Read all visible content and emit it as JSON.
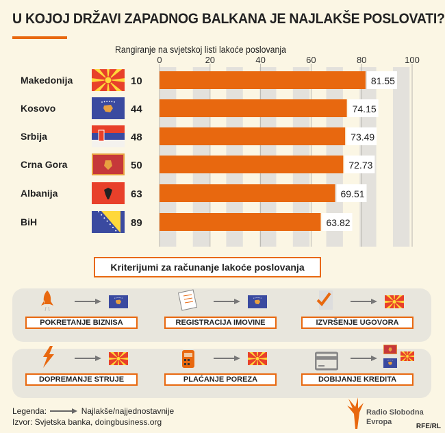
{
  "title": "U KOJOJ DRŽAVI ZAPADNOG BALKANA JE NAJLAKŠE POSLOVATI?",
  "colors": {
    "bar": "#e8680f",
    "background": "#fbf6e4",
    "band": "#e3e1dc"
  },
  "chart_data": {
    "type": "bar",
    "orientation": "horizontal",
    "title": "Rangiranje na svjetskoj listi lakoće poslovanja",
    "categories": [
      "Makedonija",
      "Kosovo",
      "Srbija",
      "Crna Gora",
      "Albanija",
      "BiH"
    ],
    "ranks": [
      "10",
      "44",
      "48",
      "50",
      "63",
      "89"
    ],
    "flags": [
      "north-macedonia-flag",
      "kosovo-flag",
      "serbia-flag",
      "montenegro-flag",
      "albania-flag",
      "bosnia-flag"
    ],
    "values": [
      81.55,
      74.15,
      73.49,
      72.73,
      69.51,
      63.82
    ],
    "value_labels": [
      "81.55",
      "74.15",
      "73.49",
      "72.73",
      "69.51",
      "63.82"
    ],
    "xlim": [
      0,
      100
    ],
    "xticks": [
      "0",
      "20",
      "40",
      "60",
      "80",
      "100"
    ],
    "grid": true
  },
  "criteria": {
    "heading": "Kriterijumi za računanje lakoće poslovanja",
    "items": [
      {
        "label": "POKRETANJE BIZNISA",
        "icon": "rocket-icon",
        "winners": [
          "kosovo-flag"
        ]
      },
      {
        "label": "REGISTRACIJA IMOVINE",
        "icon": "document-icon",
        "winners": [
          "kosovo-flag"
        ]
      },
      {
        "label": "IZVRŠENJE UGOVORA",
        "icon": "checkmark-icon",
        "winners": [
          "north-macedonia-flag"
        ]
      },
      {
        "label": "DOPREMANJE STRUJE",
        "icon": "lightning-icon",
        "winners": [
          "north-macedonia-flag"
        ]
      },
      {
        "label": "PLAĆANJE POREZA",
        "icon": "calculator-icon",
        "winners": [
          "north-macedonia-flag"
        ]
      },
      {
        "label": "DOBIJANJE KREDITA",
        "icon": "credit-card-icon",
        "winners": [
          "montenegro-flag",
          "north-macedonia-flag",
          "kosovo-flag"
        ]
      }
    ]
  },
  "footer": {
    "legend_label": "Legenda:",
    "legend_text": "Najlakše/najjednostavnije",
    "source": "Izvor: Svjetska banka, doingbusiness.org",
    "logo_line1": "Radio Slobodna",
    "logo_line2": "Evropa",
    "agency": "RFE/RL"
  }
}
